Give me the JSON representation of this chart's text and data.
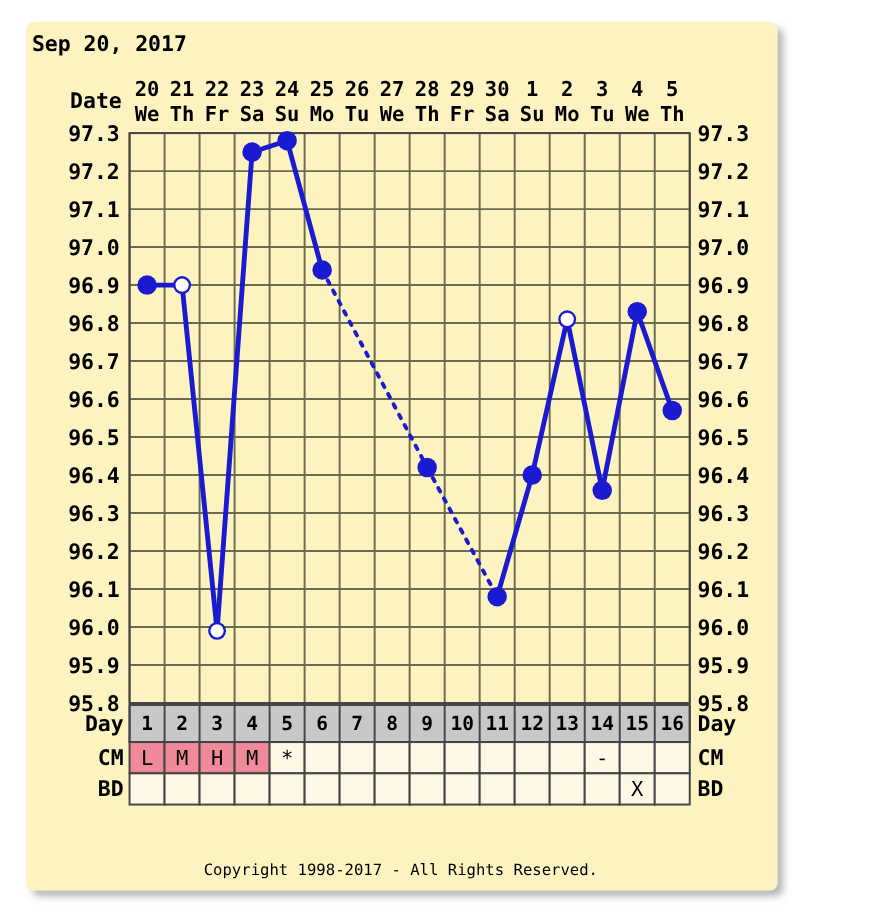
{
  "chart_data": [
    {
      "type": "line",
      "title": "Sep 20, 2017",
      "xlabel": "Day",
      "x2label": "Date",
      "x": [
        1,
        2,
        3,
        4,
        5,
        6,
        7,
        8,
        9,
        10,
        11,
        12,
        13,
        14,
        15,
        16
      ],
      "xlim": [
        0.5,
        16.5
      ],
      "xticks": [
        1,
        2,
        3,
        4,
        5,
        6,
        7,
        8,
        9,
        10,
        11,
        12,
        13,
        14,
        15,
        16
      ],
      "x2lim": [
        "2017-09-19T12:00",
        "2017-10-05T12:00"
      ],
      "x2ticks": [
        {
          "value": "2017-09-20",
          "label": "20 We"
        },
        {
          "value": "2017-09-21",
          "label": "21 Th"
        },
        {
          "value": "2017-09-22",
          "label": "22 Fr"
        },
        {
          "value": "2017-09-23",
          "label": "23 Sa"
        },
        {
          "value": "2017-09-24",
          "label": "24 Su"
        },
        {
          "value": "2017-09-25",
          "label": "25 Mo"
        },
        {
          "value": "2017-09-26",
          "label": "26 Tu"
        },
        {
          "value": "2017-09-27",
          "label": "27 We"
        },
        {
          "value": "2017-09-28",
          "label": "28 Th"
        },
        {
          "value": "2017-09-29",
          "label": "29 Fr"
        },
        {
          "value": "2017-09-30",
          "label": "30 Sa"
        },
        {
          "value": "2017-10-01",
          "label": "1 Su"
        },
        {
          "value": "2017-10-02",
          "label": "2 Mo"
        },
        {
          "value": "2017-10-03",
          "label": "3 Tu"
        },
        {
          "value": "2017-10-04",
          "label": "4 We"
        },
        {
          "value": "2017-10-05",
          "label": "5 Th"
        }
      ],
      "series": [
        {
          "type": "line",
          "color": "#1a1ad0",
          "line_style": "solid",
          "values": [
            96.9,
            96.9,
            95.99,
            97.25,
            97.28,
            96.94,
            null,
            null,
            96.42,
            null,
            96.08,
            96.4,
            96.81,
            96.36,
            96.83,
            96.57
          ]
        },
        {
          "type": "scatter",
          "color": "#1a1ad0",
          "marker": "circle",
          "values": [
            96.9,
            null,
            null,
            97.25,
            97.28,
            96.94,
            null,
            null,
            96.42,
            null,
            96.08,
            96.4,
            null,
            96.36,
            96.83,
            96.57
          ]
        },
        {
          "type": "scatter",
          "color": "#ffffff",
          "marker": "circle",
          "values": [
            null,
            96.9,
            95.99,
            null,
            null,
            null,
            null,
            null,
            null,
            null,
            null,
            null,
            96.81,
            null,
            null,
            null
          ]
        }
      ],
      "ylim": [
        95.8,
        97.3
      ],
      "yticks": [
        {
          "value": 95.8,
          "label": "95.8"
        },
        {
          "value": 95.9,
          "label": "95.9"
        },
        {
          "value": 96,
          "label": "96.0"
        },
        {
          "value": 96.1,
          "label": "96.1"
        },
        {
          "value": 96.2,
          "label": "96.2"
        },
        {
          "value": 96.3,
          "label": "96.3"
        },
        {
          "value": 96.4,
          "label": "96.4"
        },
        {
          "value": 96.5,
          "label": "96.5"
        },
        {
          "value": 96.6,
          "label": "96.6"
        },
        {
          "value": 96.7,
          "label": "96.7"
        },
        {
          "value": 96.8,
          "label": "96.8"
        },
        {
          "value": 96.9,
          "label": "96.9"
        },
        {
          "value": 97,
          "label": "97.0"
        },
        {
          "value": 97.1,
          "label": "97.1"
        },
        {
          "value": 97.2,
          "label": "97.2"
        },
        {
          "value": 97.3,
          "label": "97.3"
        }
      ],
      "y2lim": [
        95.8,
        97.3
      ],
      "y2ticks": [
        {
          "value": 95.8,
          "label": "95.8"
        },
        {
          "value": 95.9,
          "label": "95.9"
        },
        {
          "value": 96,
          "label": "96.0"
        },
        {
          "value": 96.1,
          "label": "96.1"
        },
        {
          "value": 96.2,
          "label": "96.2"
        },
        {
          "value": 96.3,
          "label": "96.3"
        },
        {
          "value": 96.4,
          "label": "96.4"
        },
        {
          "value": 96.5,
          "label": "96.5"
        },
        {
          "value": 96.6,
          "label": "96.6"
        },
        {
          "value": 96.7,
          "label": "96.7"
        },
        {
          "value": 96.8,
          "label": "96.8"
        },
        {
          "value": 96.9,
          "label": "96.9"
        },
        {
          "value": 97,
          "label": "97.0"
        },
        {
          "value": 97.1,
          "label": "97.1"
        },
        {
          "value": 97.2,
          "label": "97.2"
        },
        {
          "value": 97.3,
          "label": "97.3"
        }
      ],
      "grid": true,
      "annotations": [
        "Copyright 1998-2017 - All Rights Reserved."
      ]
    },
    {
      "type": "other",
      "y_categories": [
        "CM",
        "BD"
      ],
      "y2_categories": [
        "CM",
        "BD"
      ],
      "cell_labels": [
        [
          "L",
          "M",
          "H",
          "M",
          "*",
          null,
          null,
          null,
          null,
          null,
          null,
          null,
          null,
          "-",
          null,
          null
        ],
        [
          null,
          null,
          null,
          null,
          null,
          null,
          null,
          null,
          null,
          null,
          null,
          null,
          null,
          null,
          "X",
          null
        ]
      ],
      "colors": [
        [
          "#f08a9a",
          "#f08a9a",
          "#f08a9a",
          "#f08a9a",
          null,
          null,
          null,
          null,
          null,
          null,
          null,
          null,
          null,
          null,
          null,
          null
        ],
        [
          null,
          null,
          null,
          null,
          null,
          null,
          null,
          null,
          null,
          null,
          null,
          null,
          null,
          null,
          null,
          null
        ]
      ]
    }
  ]
}
